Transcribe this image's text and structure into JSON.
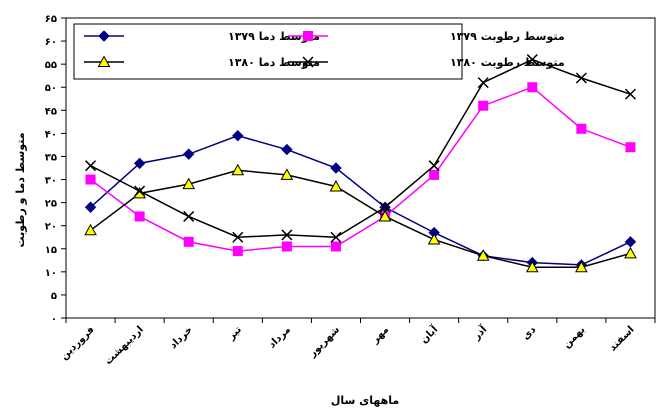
{
  "chart_data": {
    "type": "line",
    "title": "",
    "xlabel": "ماههای سال",
    "ylabel": "متوسط دما و رطوبت",
    "ylim": [
      0,
      65
    ],
    "y_ticks": [
      "۰",
      "۵",
      "۱۰",
      "۱۵",
      "۲۰",
      "۲۵",
      "۳۰",
      "۳۵",
      "۴۰",
      "۴۵",
      "۵۰",
      "۵۵",
      "۶۰",
      "۶۵"
    ],
    "y_tick_values": [
      0,
      5,
      10,
      15,
      20,
      25,
      30,
      35,
      40,
      45,
      50,
      55,
      60,
      65
    ],
    "categories": [
      "فروردین",
      "اردیبهشت",
      "خرداد",
      "تیر",
      "مرداد",
      "شهریور",
      "مهر",
      "آبان",
      "آذر",
      "دی",
      "بهمن",
      "اسفند"
    ],
    "grid": false,
    "legend_position": "top",
    "series": [
      {
        "name": "متوسط دما ۱۳۷۹",
        "color": "#000080",
        "marker": "diamond",
        "values": [
          24,
          33.5,
          35.5,
          39.5,
          36.5,
          32.5,
          24,
          18.5,
          13.5,
          12,
          11.5,
          16.5
        ]
      },
      {
        "name": "متوسط رطوبت ۱۳۷۹",
        "color": "#ff00ff",
        "marker": "square",
        "values": [
          30,
          22,
          16.5,
          14.5,
          15.5,
          15.5,
          22,
          31,
          46,
          50,
          41,
          37
        ]
      },
      {
        "name": "متوسط دما ۱۳۸۰",
        "color": "#000000",
        "marker": "triangle",
        "values": [
          19,
          27,
          29,
          32,
          31,
          28.5,
          22,
          17,
          13.5,
          11,
          11,
          14
        ]
      },
      {
        "name": "متوسط رطوبت ۱۳۸۰",
        "color": "#000000",
        "marker": "x",
        "values": [
          33,
          27.5,
          22,
          17.5,
          18,
          17.5,
          24,
          33,
          51,
          56,
          52,
          48.5
        ]
      }
    ]
  }
}
